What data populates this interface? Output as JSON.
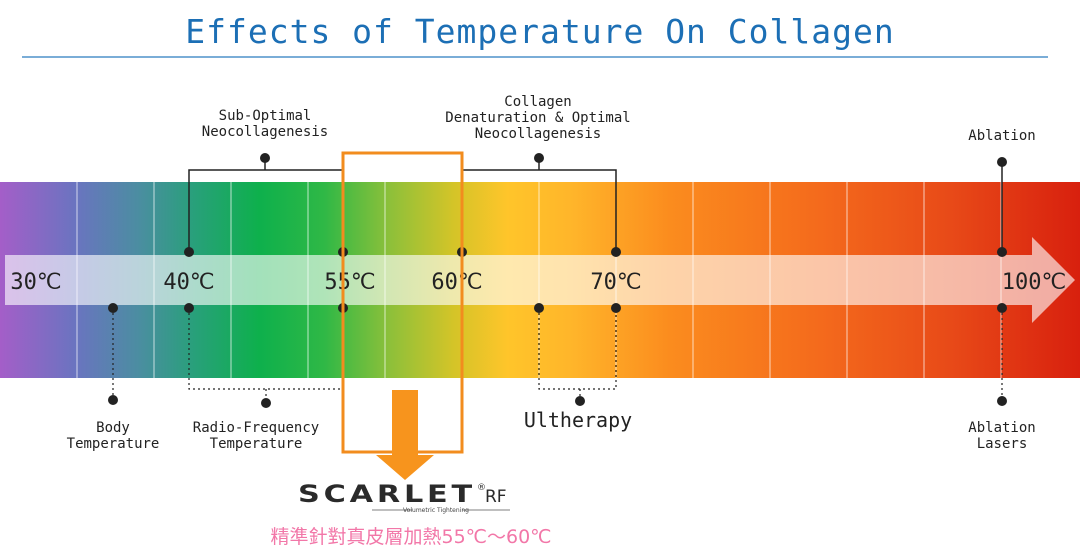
{
  "title": "Effects of Temperature On Collagen",
  "colors": {
    "title": "#1c6fb5",
    "rule": "#2a7cbf",
    "highlight_box": "#f28c1e",
    "arrow_down": "#f7941d",
    "chinese_text": "#f277a8",
    "logo": "#2a2a2a"
  },
  "temperatures": {
    "t30": "30℃",
    "t40": "40℃",
    "t55": "55℃",
    "t60": "60℃",
    "t70": "70℃",
    "t100": "100℃"
  },
  "top_labels": {
    "sub_optimal_1": "Sub-Optimal",
    "sub_optimal_2": "Neocollagenesis",
    "collagen_1": "Collagen",
    "collagen_2": "Denaturation & Optimal",
    "collagen_3": "Neocollagenesis",
    "ablation": "Ablation"
  },
  "bottom_labels": {
    "body_1": "Body",
    "body_2": "Temperature",
    "rf_1": "Radio-Frequency",
    "rf_2": "Temperature",
    "ultherapy": "Ultherapy",
    "ablation_lasers_1": "Ablation",
    "ablation_lasers_2": "Lasers"
  },
  "logo": {
    "brand": "SCARLET",
    "registered": "®",
    "suffix": "RF",
    "tagline": "Volumetric Tightening"
  },
  "chinese_caption": "精準針對真皮層加熱55℃～60℃"
}
